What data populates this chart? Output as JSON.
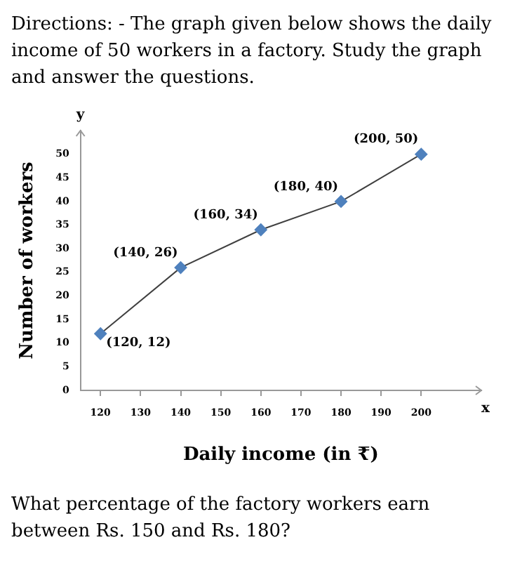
{
  "chart_data": {
    "type": "line",
    "title": "Directions: - The graph given below shows the daily income of 50 workers in a factory. Study the graph and answer the questions.",
    "xlabel": "Daily income (in ₹)",
    "ylabel": "Number of workers",
    "x": [
      120,
      140,
      160,
      180,
      200
    ],
    "series": [
      {
        "color": "#4f81bd",
        "values": [
          12,
          26,
          34,
          40,
          50
        ],
        "value_labels": [
          "(120, 12)",
          "(140, 26)",
          "(160, 34)",
          "(180, 40)",
          "(200, 50)"
        ]
      }
    ],
    "xlim": [
      115,
      215
    ],
    "xticks": [
      120,
      130,
      140,
      150,
      160,
      170,
      180,
      190,
      200
    ],
    "ylim": [
      0,
      55
    ],
    "yticks": [
      0,
      5,
      10,
      15,
      20,
      25,
      30,
      35,
      40,
      45,
      50
    ],
    "marker": "diamond",
    "grid": false,
    "legend": false,
    "annotations": [
      "y",
      "x",
      "What percentage of the factory workers earn between Rs. 150 and Rs. 180?"
    ]
  }
}
